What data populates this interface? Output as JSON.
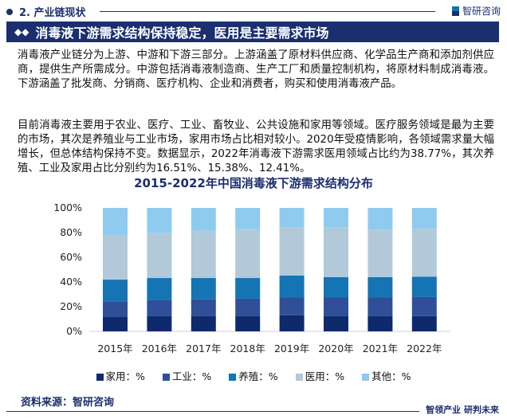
{
  "header": {
    "section": "2. 产业链现状",
    "brand": "智研咨询"
  },
  "banner": {
    "title": "消毒液下游需求结构保持稳定，医用是主要需求市场"
  },
  "paragraphs": [
    "消毒液产业链分为上游、中游和下游三部分。上游涵盖了原材料供应商、化学品生产商和添加剂供应商，提供生产所需成分。中游包括消毒液制造商、生产工厂和质量控制机构，将原材料制成消毒液。下游涵盖了批发商、分销商、医疗机构、企业和消费者，购买和使用消毒液产品。",
    "目前消毒液主要用于农业、医疗、工业、畜牧业、公共设施和家用等领域。医疗服务领域是最为主要的市场，其次是养殖业与工业市场，家用市场占比相对较小。2020年受疫情影响，各领域需求量大幅增长，但总体结构保持不变。数据显示，2022年消毒液下游需求医用领域占比约为38.77%，其次养殖、工业及家用占比分别约为16.51%、15.38%、12.41%。"
  ],
  "chart_data": {
    "type": "bar",
    "stacked": true,
    "title": "2015-2022年中国消毒液下游需求结构分布",
    "categories": [
      "2015年",
      "2016年",
      "2017年",
      "2018年",
      "2019年",
      "2020年",
      "2021年",
      "2022年"
    ],
    "yticks": [
      "0%",
      "20%",
      "40%",
      "60%",
      "80%",
      "100%"
    ],
    "ylim": [
      0,
      100
    ],
    "grid": false,
    "legend_position": "bottom",
    "series": [
      {
        "name": "家用：%",
        "color": "#0e2a6d",
        "values": [
          11.6,
          12.3,
          12.3,
          12.3,
          13.1,
          12.3,
          12.3,
          12.41
        ]
      },
      {
        "name": "工业：%",
        "color": "#2f5098",
        "values": [
          12.3,
          12.9,
          13.7,
          14.2,
          14.6,
          15.4,
          15.4,
          15.38
        ]
      },
      {
        "name": "养殖：%",
        "color": "#1574b3",
        "values": [
          18.0,
          18.0,
          17.2,
          16.7,
          17.5,
          16.2,
          16.2,
          16.51
        ]
      },
      {
        "name": "医用：%",
        "color": "#b1c9d8",
        "values": [
          36.2,
          36.4,
          38.3,
          39.6,
          39.1,
          40.4,
          38.5,
          38.77
        ]
      },
      {
        "name": "其他：%",
        "color": "#8fcbef",
        "values": [
          21.9,
          20.4,
          18.5,
          17.2,
          15.7,
          15.7,
          17.6,
          16.93
        ]
      }
    ]
  },
  "footer": {
    "source": "资料来源：智研咨询",
    "slogan": "智领产业 研判未来"
  }
}
